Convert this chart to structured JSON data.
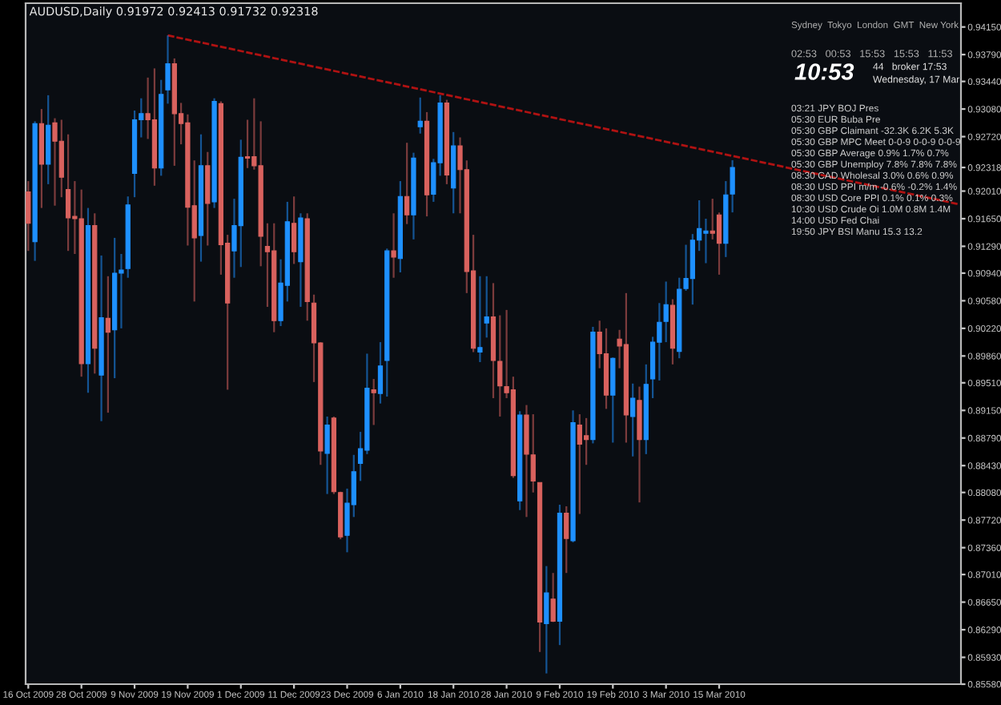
{
  "chart_data": {
    "type": "candlestick",
    "title": "AUDUSD,Daily 0.91972 0.92413 0.91732 0.92318",
    "colors": [
      "#d9625e",
      "#1e90ff",
      "#d9625e",
      "#1e90ff",
      "#d9625e",
      "#d9625e",
      "#d9625e",
      "#d9625e",
      "#d9625e",
      "#1e90ff",
      "#d9625e",
      "#1e90ff",
      "#d9625e",
      "#1e90ff",
      "#1e90ff",
      "#1e90ff",
      "#1e90ff",
      "#1e90ff",
      "#d9625e",
      "#d9625e",
      "#1e90ff",
      "#1e90ff",
      "#d9625e",
      "#d9625e",
      "#d9625e",
      "#d9625e",
      "#1e90ff",
      "#d9625e",
      "#1e90ff",
      "#d9625e",
      "#d9625e",
      "#1e90ff",
      "#1e90ff",
      "#d9625e",
      "#d9625e",
      "#d9625e",
      "#d9625e",
      "#d9625e",
      "#1e90ff",
      "#1e90ff",
      "#d9625e",
      "#1e90ff",
      "#d9625e",
      "#d9625e",
      "#d9625e",
      "#1e90ff",
      "#d9625e",
      "#d9625e",
      "#1e90ff",
      "#1e90ff",
      "#1e90ff",
      "#1e90ff",
      "#d9625e",
      "#1e90ff",
      "#1e90ff",
      "#d9625e",
      "#1e90ff",
      "#d9625e",
      "#1e90ff",
      "#1e90ff",
      "#d9625e",
      "#1e90ff",
      "#1e90ff",
      "#d9625e",
      "#1e90ff",
      "#d9625e",
      "#d9625e",
      "#d9625e",
      "#1e90ff",
      "#1e90ff",
      "#d9625e",
      "#d9625e",
      "#d9625e",
      "#d9625e",
      "#1e90ff",
      "#d9625e",
      "#d9625e",
      "#d9625e",
      "#1e90ff",
      "#d9625e",
      "#1e90ff",
      "#d9625e",
      "#1e90ff",
      "#d9625e",
      "#d9625e",
      "#1e90ff",
      "#d9625e",
      "#d9625e",
      "#1e90ff",
      "#d9625e",
      "#d9625e",
      "#1e90ff",
      "#d9625e",
      "#1e90ff",
      "#1e90ff",
      "#1e90ff",
      "#1e90ff",
      "#d9625e",
      "#1e90ff",
      "#1e90ff",
      "#1e90ff",
      "#1e90ff",
      "#1e90ff",
      "#d9625e",
      "#d9625e",
      "#1e90ff",
      "#1e90ff",
      null,
      null,
      null,
      null,
      null,
      null,
      null,
      null,
      null,
      null,
      null,
      null,
      null,
      null,
      null,
      null,
      null,
      null,
      null,
      null,
      null,
      null,
      null,
      null,
      null,
      null,
      null,
      null,
      null,
      null,
      null,
      null,
      null,
      null
    ],
    "categories": [
      "16 Oct 2009",
      null,
      null,
      null,
      null,
      null,
      null,
      null,
      "28 Oct 2009",
      null,
      null,
      null,
      null,
      null,
      null,
      null,
      "9 Nov 2009",
      null,
      null,
      null,
      null,
      null,
      null,
      null,
      "19 Nov 2009",
      null,
      null,
      null,
      null,
      null,
      null,
      null,
      "1 Dec 2009",
      null,
      null,
      null,
      null,
      null,
      null,
      null,
      "11 Dec 2009",
      null,
      null,
      null,
      null,
      null,
      null,
      null,
      "23 Dec 2009",
      null,
      null,
      null,
      null,
      null,
      null,
      null,
      "6 Jan 2010",
      null,
      null,
      null,
      null,
      null,
      null,
      null,
      "18 Jan 2010",
      null,
      null,
      null,
      null,
      null,
      null,
      null,
      "28 Jan 2010",
      null,
      null,
      null,
      null,
      null,
      null,
      null,
      "9 Feb 2010",
      null,
      null,
      null,
      null,
      null,
      null,
      null,
      "19 Feb 2010",
      null,
      null,
      null,
      null,
      null,
      null,
      null,
      "3 Mar 2010",
      null,
      null,
      null,
      null,
      null,
      null,
      null,
      "15 Mar 2010",
      null,
      null,
      null,
      null,
      null,
      null,
      null,
      null,
      null,
      null,
      null,
      null,
      null,
      null,
      null,
      null,
      null,
      null,
      null,
      null,
      null,
      null,
      null,
      null,
      null,
      null,
      null,
      null,
      null,
      null,
      null,
      null,
      null,
      null,
      null,
      null
    ],
    "ohlc": [
      [
        0.92,
        0.9214,
        0.9123,
        0.9159
      ],
      [
        0.9135,
        0.9292,
        0.911,
        0.9289
      ],
      [
        0.9289,
        0.9308,
        0.9179,
        0.9236
      ],
      [
        0.9236,
        0.9326,
        0.921,
        0.9287
      ],
      [
        0.929,
        0.9296,
        0.9182,
        0.9266
      ],
      [
        0.9266,
        0.9294,
        0.9193,
        0.9219
      ],
      [
        0.9203,
        0.9275,
        0.9123,
        0.9166
      ],
      [
        0.9168,
        0.9214,
        0.9119,
        0.9165
      ],
      [
        0.9165,
        0.9203,
        0.8959,
        0.8976
      ],
      [
        0.8976,
        0.9179,
        0.8938,
        0.9156
      ],
      [
        0.9156,
        0.9172,
        0.8963,
        0.8996
      ],
      [
        0.8961,
        0.9117,
        0.8901,
        0.9036
      ],
      [
        0.9035,
        0.909,
        0.8912,
        0.9017
      ],
      [
        0.902,
        0.914,
        0.8957,
        0.9094
      ],
      [
        0.9094,
        0.9119,
        0.9022,
        0.9098
      ],
      [
        0.91,
        0.9194,
        0.9088,
        0.9183
      ],
      [
        0.9224,
        0.9306,
        0.9193,
        0.9294
      ],
      [
        0.9294,
        0.9322,
        0.9271,
        0.9302
      ],
      [
        0.9302,
        0.9349,
        0.9269,
        0.9294
      ],
      [
        0.9294,
        0.9361,
        0.9208,
        0.9231
      ],
      [
        0.9231,
        0.9346,
        0.9221,
        0.9327
      ],
      [
        0.9333,
        0.9404,
        0.9315,
        0.9367
      ],
      [
        0.9367,
        0.9374,
        0.9234,
        0.9302
      ],
      [
        0.9302,
        0.9316,
        0.9262,
        0.9289
      ],
      [
        0.929,
        0.9301,
        0.913,
        0.918
      ],
      [
        0.9182,
        0.9241,
        0.9057,
        0.914
      ],
      [
        0.9143,
        0.9275,
        0.9109,
        0.9234
      ],
      [
        0.9234,
        0.9252,
        0.913,
        0.9185
      ],
      [
        0.9187,
        0.9322,
        0.9179,
        0.9318
      ],
      [
        0.9315,
        0.9318,
        0.9092,
        0.9131
      ],
      [
        0.9133,
        0.9144,
        0.8942,
        0.9055
      ],
      [
        0.9123,
        0.9191,
        0.9088,
        0.9156
      ],
      [
        0.9156,
        0.9268,
        0.9102,
        0.9245
      ],
      [
        0.9246,
        0.9294,
        0.9231,
        0.9244
      ],
      [
        0.9246,
        0.9322,
        0.9229,
        0.9234
      ],
      [
        0.9234,
        0.9292,
        0.9103,
        0.9142
      ],
      [
        0.9129,
        0.9159,
        0.905,
        0.9122
      ],
      [
        0.9123,
        0.9159,
        0.9017,
        0.9032
      ],
      [
        0.9032,
        0.9112,
        0.9025,
        0.9081
      ],
      [
        0.9078,
        0.9187,
        0.9057,
        0.9161
      ],
      [
        0.9159,
        0.9194,
        0.9106,
        0.9122
      ],
      [
        0.9109,
        0.9172,
        0.905,
        0.9166
      ],
      [
        0.9165,
        0.9172,
        0.9032,
        0.9057
      ],
      [
        0.9055,
        0.9066,
        0.8952,
        0.9003
      ],
      [
        0.9003,
        0.9004,
        0.8844,
        0.8862
      ],
      [
        0.8859,
        0.8907,
        0.8806,
        0.8896
      ],
      [
        0.8905,
        0.8907,
        0.8806,
        0.8809
      ],
      [
        0.8808,
        0.8809,
        0.8747,
        0.875
      ],
      [
        0.8752,
        0.8813,
        0.873,
        0.8794
      ],
      [
        0.8792,
        0.8857,
        0.8776,
        0.8835
      ],
      [
        0.8846,
        0.8887,
        0.8823,
        0.8865
      ],
      [
        0.8863,
        0.8989,
        0.8858,
        0.8944
      ],
      [
        0.8942,
        0.8956,
        0.8896,
        0.8938
      ],
      [
        0.8937,
        0.9004,
        0.8924,
        0.8973
      ],
      [
        0.898,
        0.9126,
        0.8933,
        0.9123
      ],
      [
        0.9123,
        0.9172,
        0.9088,
        0.9115
      ],
      [
        0.9113,
        0.9214,
        0.9095,
        0.9194
      ],
      [
        0.9194,
        0.9264,
        0.9158,
        0.917
      ],
      [
        0.917,
        0.9251,
        0.9138,
        0.9244
      ],
      [
        0.9285,
        0.9323,
        0.9276,
        0.9292
      ],
      [
        0.9292,
        0.9304,
        0.9168,
        0.9196
      ],
      [
        0.9197,
        0.9243,
        0.9187,
        0.9238
      ],
      [
        0.9238,
        0.9326,
        0.9221,
        0.9316
      ],
      [
        0.9316,
        0.932,
        0.921,
        0.9222
      ],
      [
        0.9205,
        0.9278,
        0.9172,
        0.926
      ],
      [
        0.926,
        0.9271,
        0.9172,
        0.9229
      ],
      [
        0.9229,
        0.9241,
        0.9068,
        0.9096
      ],
      [
        0.9097,
        0.9144,
        0.8991,
        0.8996
      ],
      [
        0.8991,
        0.909,
        0.8978,
        0.8997
      ],
      [
        0.9029,
        0.909,
        0.901,
        0.9037
      ],
      [
        0.9037,
        0.9081,
        0.8931,
        0.898
      ],
      [
        0.8979,
        0.9039,
        0.8907,
        0.8947
      ],
      [
        0.8946,
        0.9046,
        0.8931,
        0.8938
      ],
      [
        0.8942,
        0.8959,
        0.8827,
        0.883
      ],
      [
        0.8797,
        0.8914,
        0.8785,
        0.8909
      ],
      [
        0.8909,
        0.8922,
        0.8776,
        0.8858
      ],
      [
        0.8857,
        0.891,
        0.8808,
        0.8823
      ],
      [
        0.8821,
        0.8821,
        0.86,
        0.8639
      ],
      [
        0.8637,
        0.8712,
        0.8572,
        0.8677
      ],
      [
        0.8669,
        0.8703,
        0.8639,
        0.864
      ],
      [
        0.864,
        0.8792,
        0.8609,
        0.8781
      ],
      [
        0.8781,
        0.879,
        0.8703,
        0.8748
      ],
      [
        0.8745,
        0.8915,
        0.8743,
        0.8899
      ],
      [
        0.8896,
        0.891,
        0.878,
        0.8871
      ],
      [
        0.8882,
        0.8905,
        0.8844,
        0.8877
      ],
      [
        0.8877,
        0.9024,
        0.8872,
        0.9017
      ],
      [
        0.9017,
        0.9032,
        0.897,
        0.8989
      ],
      [
        0.8989,
        0.9022,
        0.8917,
        0.8935
      ],
      [
        0.8935,
        0.8984,
        0.8873,
        0.8983
      ],
      [
        0.9008,
        0.902,
        0.897,
        0.8999
      ],
      [
        0.9001,
        0.9068,
        0.8873,
        0.8909
      ],
      [
        0.8907,
        0.895,
        0.8855,
        0.8931
      ],
      [
        0.8928,
        0.8946,
        0.8795,
        0.8877
      ],
      [
        0.8877,
        0.8975,
        0.8858,
        0.8949
      ],
      [
        0.8956,
        0.9011,
        0.8931,
        0.9004
      ],
      [
        0.9004,
        0.9055,
        0.8954,
        0.903
      ],
      [
        0.9031,
        0.9083,
        0.9004,
        0.9053
      ],
      [
        0.9052,
        0.906,
        0.8975,
        0.8996
      ],
      [
        0.8992,
        0.9088,
        0.8983,
        0.9073
      ],
      [
        0.9074,
        0.9131,
        0.9071,
        0.9087
      ],
      [
        0.9087,
        0.9145,
        0.9053,
        0.9137
      ],
      [
        0.9137,
        0.9189,
        0.9123,
        0.9152
      ],
      [
        0.9146,
        0.9165,
        0.9107,
        0.9149
      ],
      [
        0.9149,
        0.9191,
        0.9138,
        0.9146
      ],
      [
        0.917,
        0.9173,
        0.9092,
        0.9133
      ],
      [
        0.9133,
        0.9214,
        0.9115,
        0.9196
      ],
      [
        0.91972,
        0.92413,
        0.91732,
        0.92318
      ],
      null,
      null,
      null,
      null,
      null,
      null,
      null,
      null,
      null,
      null,
      null,
      null,
      null,
      null,
      null,
      null,
      null,
      null,
      null,
      null,
      null,
      null,
      null,
      null,
      null,
      null,
      null,
      null,
      null,
      null,
      null,
      null,
      null,
      null
    ],
    "series": [
      {
        "type": "line",
        "color": "#b01212",
        "line_style": "dashed",
        "values": [
          null,
          null,
          null,
          null,
          null,
          null,
          null,
          null,
          null,
          null,
          null,
          null,
          null,
          null,
          null,
          null,
          null,
          null,
          null,
          null,
          null,
          0.9404,
          null,
          null,
          null,
          null,
          null,
          null,
          null,
          null,
          null,
          null,
          null,
          null,
          null,
          null,
          null,
          null,
          null,
          null,
          null,
          null,
          null,
          null,
          null,
          null,
          null,
          null,
          null,
          null,
          null,
          null,
          null,
          null,
          null,
          null,
          null,
          null,
          null,
          null,
          null,
          null,
          null,
          null,
          null,
          null,
          null,
          null,
          null,
          null,
          null,
          null,
          null,
          null,
          null,
          null,
          null,
          null,
          null,
          null,
          null,
          null,
          null,
          null,
          null,
          null,
          null,
          null,
          null,
          null,
          null,
          null,
          null,
          null,
          null,
          null,
          null,
          null,
          null,
          null,
          null,
          null,
          null,
          null,
          null,
          null,
          null,
          null,
          null,
          null,
          null,
          null,
          null,
          null,
          null,
          null,
          null,
          null,
          null,
          null,
          null,
          null,
          null,
          null,
          null,
          null,
          null,
          null,
          null,
          null,
          null,
          null,
          null,
          null,
          null,
          null,
          null,
          null,
          null,
          null,
          0.9184
        ]
      }
    ],
    "ylim": [
      0.8558,
      0.9446
    ],
    "yticks": [
      {
        "value": 0.9415,
        "label": "0.94150"
      },
      {
        "value": 0.9379,
        "label": "0.93790"
      },
      {
        "value": 0.9344,
        "label": "0.93440"
      },
      {
        "value": 0.9308,
        "label": "0.93080"
      },
      {
        "value": 0.9272,
        "label": "0.92720"
      },
      {
        "value": 0.92318,
        "label": "0.92318"
      },
      {
        "value": 0.9201,
        "label": "0.92010"
      },
      {
        "value": 0.9165,
        "label": "0.91650"
      },
      {
        "value": 0.9129,
        "label": "0.91290"
      },
      {
        "value": 0.9094,
        "label": "0.90940"
      },
      {
        "value": 0.9058,
        "label": "0.90580"
      },
      {
        "value": 0.9022,
        "label": "0.90220"
      },
      {
        "value": 0.8986,
        "label": "0.89860"
      },
      {
        "value": 0.8951,
        "label": "0.89510"
      },
      {
        "value": 0.8915,
        "label": "0.89150"
      },
      {
        "value": 0.8879,
        "label": "0.88790"
      },
      {
        "value": 0.8843,
        "label": "0.88430"
      },
      {
        "value": 0.8808,
        "label": "0.88080"
      },
      {
        "value": 0.8772,
        "label": "0.87720"
      },
      {
        "value": 0.8736,
        "label": "0.87360"
      },
      {
        "value": 0.8701,
        "label": "0.87010"
      },
      {
        "value": 0.8665,
        "label": "0.86650"
      },
      {
        "value": 0.8629,
        "label": "0.86290"
      },
      {
        "value": 0.8593,
        "label": "0.85930"
      },
      {
        "value": 0.8558,
        "label": "0.85580"
      }
    ],
    "annotations": [
      "Sydney  Tokyo  London  GMT  New York",
      "02:53   00:53   15:53   15:53   11:53",
      "10:53",
      "44   broker 17:53",
      "Wednesday, 17 Mar",
      "03:21 JPY BOJ Pres",
      "05:30 EUR Buba Pre",
      "05:30 GBP Claimant -32.3K 6.2K 5.3K",
      "05:30 GBP MPC Meet 0-0-9 0-0-9 0-0-9",
      "05:30 GBP Average 0.9% 1.7% 0.7%",
      "05:30 GBP Unemploy 7.8% 7.8% 7.8%",
      "08:30 CAD Wholesal 3.0% 0.6% 0.9%",
      "08:30 USD PPI m/m -0.6% -0.2% 1.4%",
      "08:30 USD Core PPI 0.1% 0.1% 0.3%",
      "10:30 USD Crude Oi 1.0M 0.8M 1.4M",
      "14:00 USD Fed Chai",
      "19:50 JPY BSI Manu 15.3 13.2"
    ]
  }
}
